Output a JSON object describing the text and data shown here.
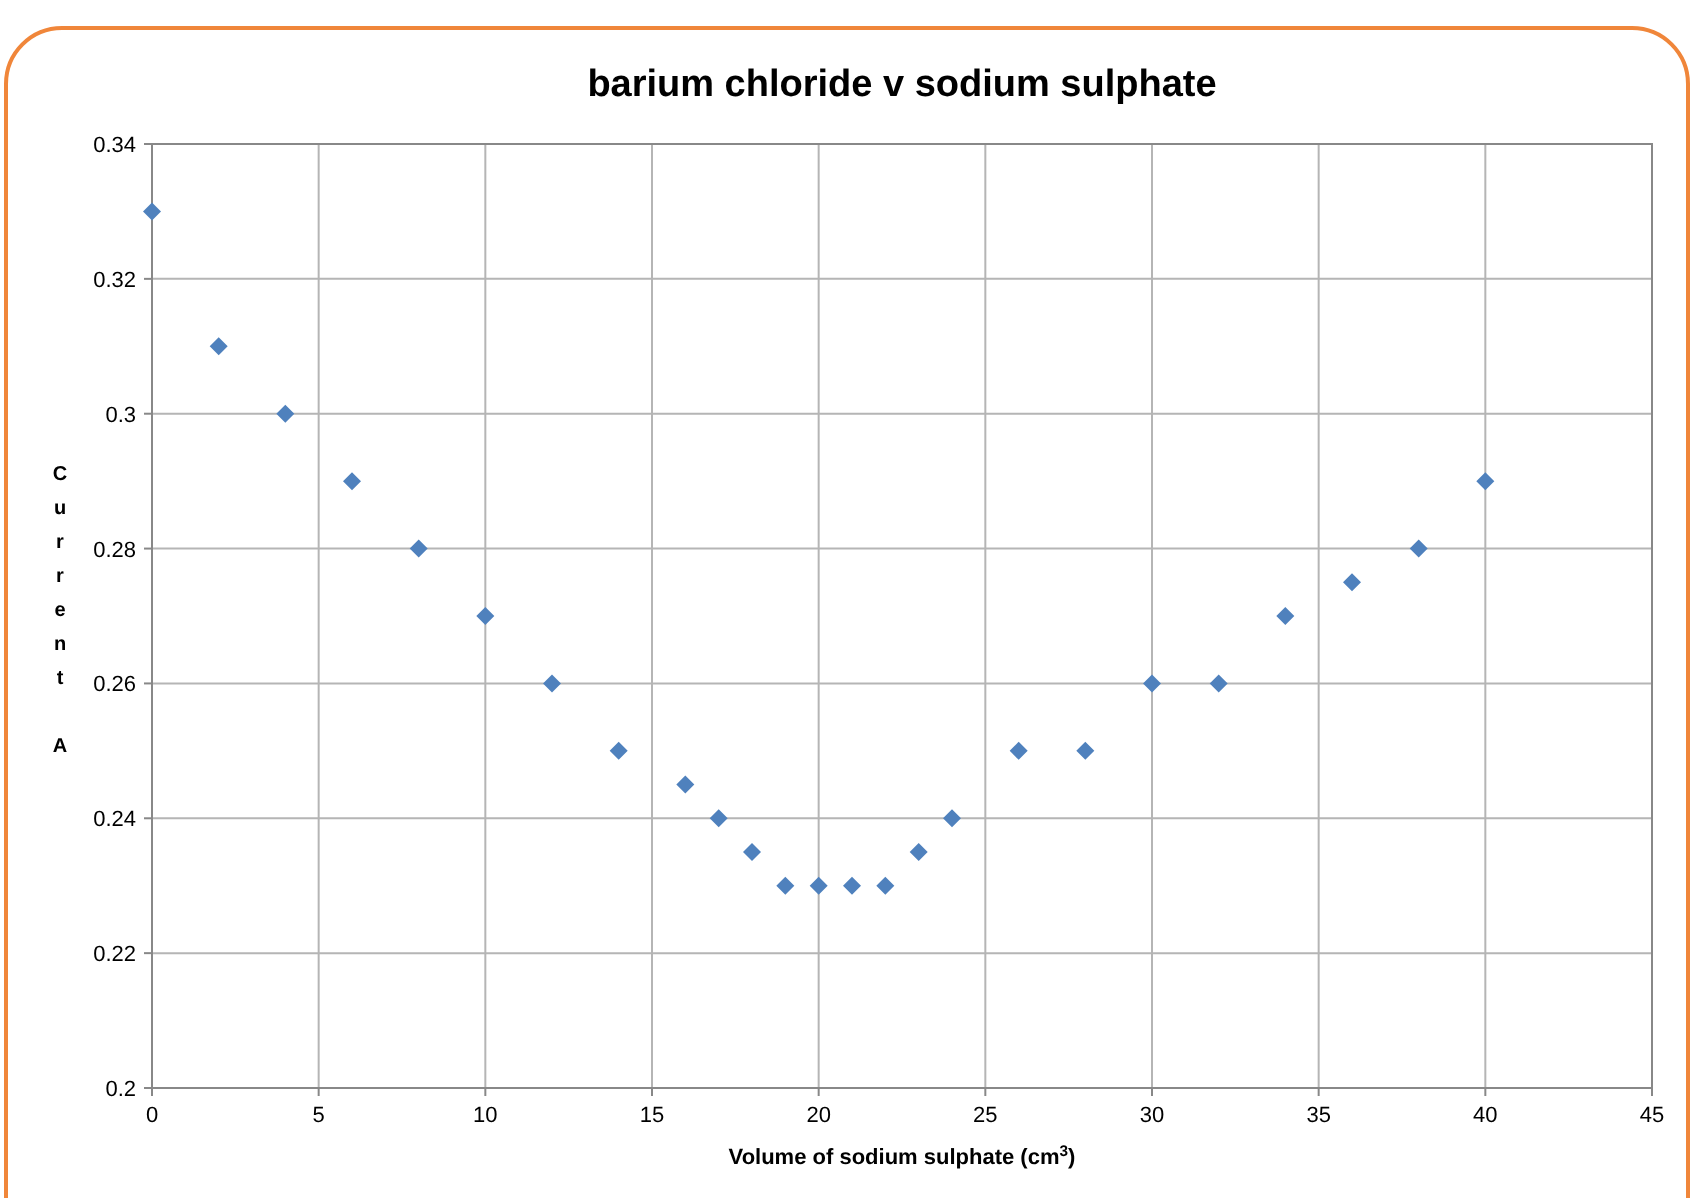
{
  "chart_data": {
    "type": "scatter",
    "title": "barium chloride v sodium sulphate",
    "xlabel": "Volume of sodium sulphate (cm$^{3}$)",
    "ylabel": "Current A",
    "x": [
      0,
      2,
      4,
      6,
      8,
      10,
      12,
      14,
      16,
      17,
      18,
      19,
      20,
      21,
      22,
      23,
      24,
      26,
      28,
      30,
      32,
      34,
      36,
      38,
      40
    ],
    "series": [
      {
        "color": "#4f81bd",
        "values": [
          0.33,
          0.31,
          0.3,
          0.29,
          0.28,
          0.27,
          0.26,
          0.25,
          0.245,
          0.24,
          0.235,
          0.23,
          0.23,
          0.23,
          0.23,
          0.235,
          0.24,
          0.25,
          0.25,
          0.26,
          0.26,
          0.27,
          0.275,
          0.28,
          0.29
        ]
      }
    ],
    "xlim": [
      0,
      45
    ],
    "xticks": [
      0,
      5,
      10,
      15,
      20,
      25,
      30,
      35,
      40,
      45
    ],
    "ylim": [
      0.2,
      0.34
    ],
    "yticks": [
      {
        "value": 0.2,
        "label": "0.2"
      },
      0.22,
      0.24,
      0.26,
      0.28,
      {
        "value": 0.3,
        "label": "0.3"
      },
      0.32,
      0.34
    ],
    "grid": true,
    "marker": "diamond"
  }
}
